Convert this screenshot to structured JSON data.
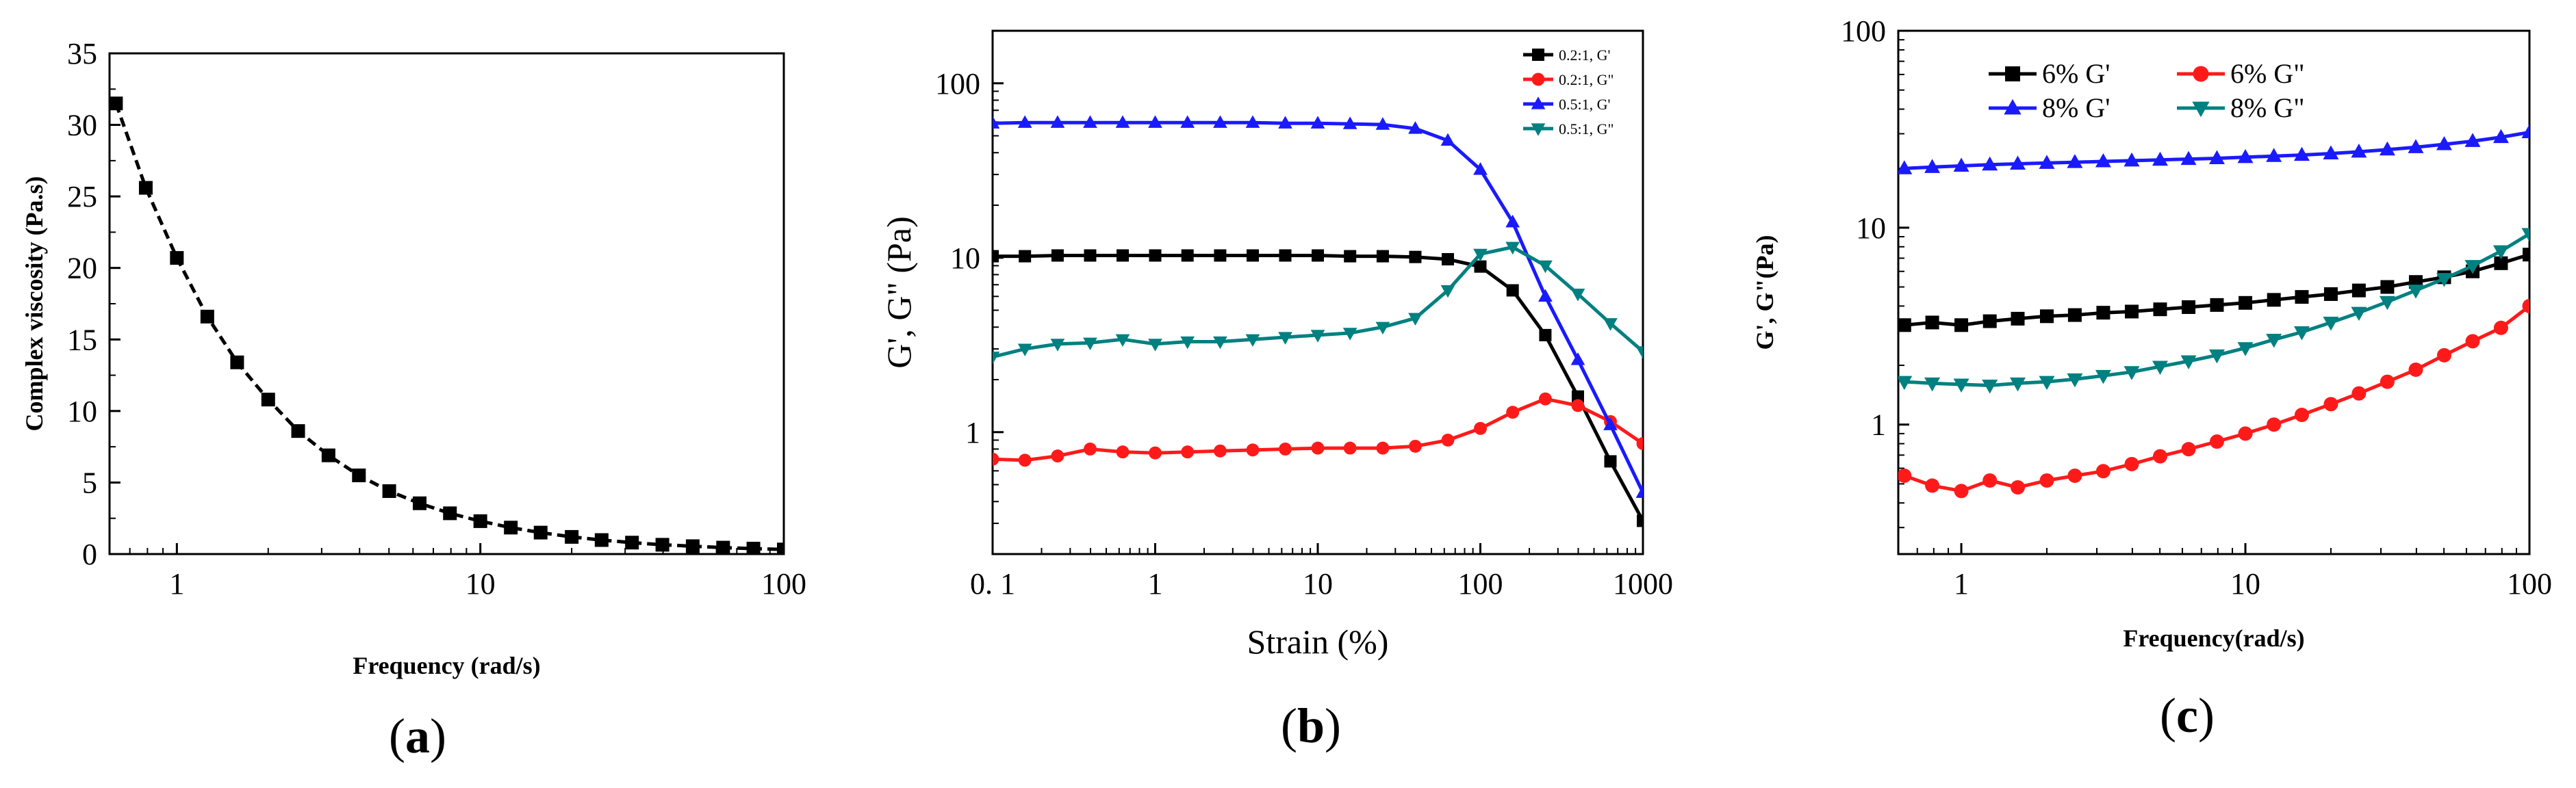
{
  "colors": {
    "black": "#000000",
    "red": "#ff1a1a",
    "blue": "#1a1aff",
    "teal": "#008080"
  },
  "chart_data": [
    {
      "type": "line",
      "panel_label": "a",
      "xscale": "log",
      "xlim": [
        0.6,
        100
      ],
      "ylim": [
        0,
        35
      ],
      "xlabel": "Frequency (rad/s)",
      "ylabel": "Complex viscosity (Pa.s)",
      "x_ticks": [
        1,
        10,
        100
      ],
      "x_tick_labels": [
        "1",
        "10",
        "100"
      ],
      "y_ticks": [
        0,
        5,
        10,
        15,
        20,
        25,
        30,
        35
      ],
      "y_tick_labels": [
        "0",
        "5",
        "10",
        "15",
        "20",
        "25",
        "30",
        "35"
      ],
      "series": [
        {
          "name": "Complex viscosity",
          "color": "#000000",
          "marker": "square",
          "dashed": true,
          "x": [
            0.63,
            0.79,
            1.0,
            1.26,
            1.58,
            2.0,
            2.51,
            3.16,
            3.98,
            5.01,
            6.31,
            7.94,
            10.0,
            12.6,
            15.8,
            20.0,
            25.1,
            31.6,
            39.8,
            50.1,
            63.1,
            79.4,
            100
          ],
          "values": [
            31.5,
            25.6,
            20.7,
            16.6,
            13.4,
            10.8,
            8.6,
            6.9,
            5.5,
            4.4,
            3.55,
            2.85,
            2.3,
            1.85,
            1.5,
            1.2,
            0.98,
            0.8,
            0.65,
            0.55,
            0.45,
            0.38,
            0.32
          ]
        }
      ]
    },
    {
      "type": "line",
      "panel_label": "b",
      "xscale": "log",
      "yscale": "log",
      "xlim": [
        0.1,
        1000
      ],
      "ylim": [
        0.2,
        200
      ],
      "xlabel": "Strain (%)",
      "ylabel": "G', G\" (Pa)",
      "x_ticks": [
        0.1,
        1,
        10,
        100,
        1000
      ],
      "x_tick_labels": [
        "0. 1",
        "1",
        "10",
        "100",
        "1000"
      ],
      "y_ticks": [
        1,
        10,
        100
      ],
      "y_tick_labels": [
        "1",
        "10",
        "100"
      ],
      "legend_position": "top-right",
      "series": [
        {
          "name": "0.2:1, G'",
          "color": "#000000",
          "marker": "square",
          "x": [
            0.1,
            0.158,
            0.251,
            0.398,
            0.631,
            1.0,
            1.58,
            2.51,
            3.98,
            6.31,
            10.0,
            15.8,
            25.1,
            39.8,
            63.1,
            100,
            158,
            251,
            398,
            631,
            1000
          ],
          "values": [
            10.2,
            10.2,
            10.3,
            10.3,
            10.3,
            10.3,
            10.3,
            10.3,
            10.3,
            10.3,
            10.3,
            10.2,
            10.2,
            10.1,
            9.8,
            8.9,
            6.5,
            3.6,
            1.6,
            0.68,
            0.31
          ]
        },
        {
          "name": "0.2:1, G\"",
          "color": "#ff1a1a",
          "marker": "circle",
          "x": [
            0.1,
            0.158,
            0.251,
            0.398,
            0.631,
            1.0,
            1.58,
            2.51,
            3.98,
            6.31,
            10.0,
            15.8,
            25.1,
            39.8,
            63.1,
            100,
            158,
            251,
            398,
            631,
            1000
          ],
          "values": [
            0.7,
            0.69,
            0.73,
            0.8,
            0.77,
            0.76,
            0.77,
            0.78,
            0.79,
            0.8,
            0.81,
            0.81,
            0.81,
            0.83,
            0.9,
            1.05,
            1.3,
            1.55,
            1.42,
            1.15,
            0.86
          ]
        },
        {
          "name": "0.5:1, G'",
          "color": "#1a1aff",
          "marker": "triangle-up",
          "x": [
            0.1,
            0.158,
            0.251,
            0.398,
            0.631,
            1.0,
            1.58,
            2.51,
            3.98,
            6.31,
            10.0,
            15.8,
            25.1,
            39.8,
            63.1,
            100,
            158,
            251,
            398,
            631,
            1000
          ],
          "values": [
            59.0,
            59.5,
            59.5,
            59.5,
            59.5,
            59.5,
            59.5,
            59.5,
            59.5,
            59.0,
            59.0,
            58.5,
            58.0,
            55.0,
            47.0,
            32.0,
            16.0,
            6.0,
            2.6,
            1.1,
            0.45
          ]
        },
        {
          "name": "0.5:1, G\"",
          "color": "#008080",
          "marker": "triangle-down",
          "x": [
            0.1,
            0.158,
            0.251,
            0.398,
            0.631,
            1.0,
            1.58,
            2.51,
            3.98,
            6.31,
            10.0,
            15.8,
            25.1,
            39.8,
            63.1,
            100,
            158,
            251,
            398,
            631,
            1000
          ],
          "values": [
            2.7,
            3.0,
            3.2,
            3.25,
            3.4,
            3.2,
            3.3,
            3.3,
            3.4,
            3.5,
            3.6,
            3.7,
            4.0,
            4.5,
            6.5,
            10.5,
            11.5,
            9.0,
            6.2,
            4.2,
            2.9
          ]
        }
      ]
    },
    {
      "type": "line",
      "panel_label": "c",
      "xscale": "log",
      "yscale": "log",
      "xlim": [
        0.6,
        100
      ],
      "ylim": [
        0.22,
        100
      ],
      "xlabel": "Frequency(rad/s)",
      "ylabel": "G', G\"(Pa)",
      "x_ticks": [
        1,
        10,
        100
      ],
      "x_tick_labels": [
        "1",
        "10",
        "100"
      ],
      "y_ticks": [
        1,
        10,
        100
      ],
      "y_tick_labels": [
        "1",
        "10",
        "100"
      ],
      "legend_position": "top-left",
      "series": [
        {
          "name": "6% G'",
          "color": "#000000",
          "marker": "square",
          "x": [
            0.63,
            0.79,
            1.0,
            1.26,
            1.58,
            2.0,
            2.51,
            3.16,
            3.98,
            5.01,
            6.31,
            7.94,
            10.0,
            12.6,
            15.8,
            20.0,
            25.1,
            31.6,
            39.8,
            50.1,
            63.1,
            79.4,
            100
          ],
          "values": [
            3.2,
            3.3,
            3.2,
            3.35,
            3.45,
            3.55,
            3.6,
            3.7,
            3.75,
            3.85,
            3.95,
            4.05,
            4.15,
            4.3,
            4.45,
            4.6,
            4.8,
            5.0,
            5.3,
            5.6,
            6.0,
            6.6,
            7.3
          ]
        },
        {
          "name": "6% G\"",
          "color": "#ff1a1a",
          "marker": "circle",
          "x": [
            0.63,
            0.79,
            1.0,
            1.26,
            1.58,
            2.0,
            2.51,
            3.16,
            3.98,
            5.01,
            6.31,
            7.94,
            10.0,
            12.6,
            15.8,
            20.0,
            25.1,
            31.6,
            39.8,
            50.1,
            63.1,
            79.4,
            100
          ],
          "values": [
            0.55,
            0.49,
            0.46,
            0.52,
            0.48,
            0.52,
            0.55,
            0.58,
            0.63,
            0.69,
            0.75,
            0.82,
            0.9,
            1.0,
            1.12,
            1.27,
            1.44,
            1.65,
            1.9,
            2.25,
            2.65,
            3.1,
            4.0
          ]
        },
        {
          "name": "8% G'",
          "color": "#1a1aff",
          "marker": "triangle-up",
          "x": [
            0.63,
            0.79,
            1.0,
            1.26,
            1.58,
            2.0,
            2.51,
            3.16,
            3.98,
            5.01,
            6.31,
            7.94,
            10.0,
            12.6,
            15.8,
            20.0,
            25.1,
            31.6,
            39.8,
            50.1,
            63.1,
            79.4,
            100
          ],
          "values": [
            20.0,
            20.3,
            20.6,
            20.9,
            21.1,
            21.3,
            21.5,
            21.7,
            21.9,
            22.1,
            22.3,
            22.5,
            22.8,
            23.1,
            23.4,
            23.8,
            24.3,
            24.9,
            25.6,
            26.5,
            27.5,
            28.8,
            30.5
          ]
        },
        {
          "name": "8% G\"",
          "color": "#008080",
          "marker": "triangle-down",
          "x": [
            0.63,
            0.79,
            1.0,
            1.26,
            1.58,
            2.0,
            2.51,
            3.16,
            3.98,
            5.01,
            6.31,
            7.94,
            10.0,
            12.6,
            15.8,
            20.0,
            25.1,
            31.6,
            39.8,
            50.1,
            63.1,
            79.4,
            100
          ],
          "values": [
            1.65,
            1.62,
            1.6,
            1.58,
            1.62,
            1.65,
            1.7,
            1.77,
            1.85,
            1.97,
            2.1,
            2.25,
            2.45,
            2.7,
            2.95,
            3.3,
            3.7,
            4.2,
            4.8,
            5.5,
            6.4,
            7.6,
            9.3
          ]
        }
      ]
    }
  ]
}
